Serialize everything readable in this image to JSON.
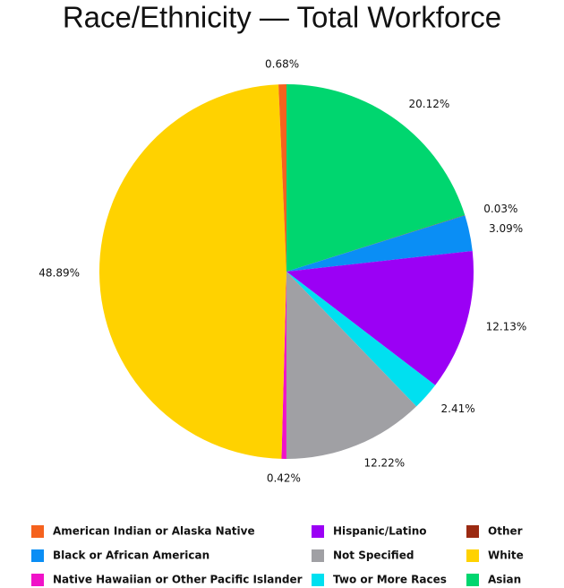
{
  "chart_data": {
    "type": "pie",
    "title": "Race/Ethnicity — Total Workforce",
    "categories": [
      "Asian",
      "Other",
      "Black or African American",
      "Hispanic/Latino",
      "Two or More Races",
      "Not Specified",
      "Native Hawaiian or Other Pacific Islander",
      "White",
      "American Indian or Alaska Native"
    ],
    "values": [
      20.12,
      0.03,
      3.09,
      12.13,
      2.41,
      12.22,
      0.42,
      48.89,
      0.68
    ],
    "value_labels": [
      "20.12%",
      "0.03%",
      "3.09%",
      "12.13%",
      "2.41%",
      "12.22%",
      "0.42%",
      "48.89%",
      "0.68%"
    ],
    "colors": [
      "#00d66f",
      "#9b2a12",
      "#0a8ef5",
      "#9b00f5",
      "#00e0f0",
      "#a0a0a4",
      "#f012c8",
      "#ffd200",
      "#f5621e"
    ]
  }
}
